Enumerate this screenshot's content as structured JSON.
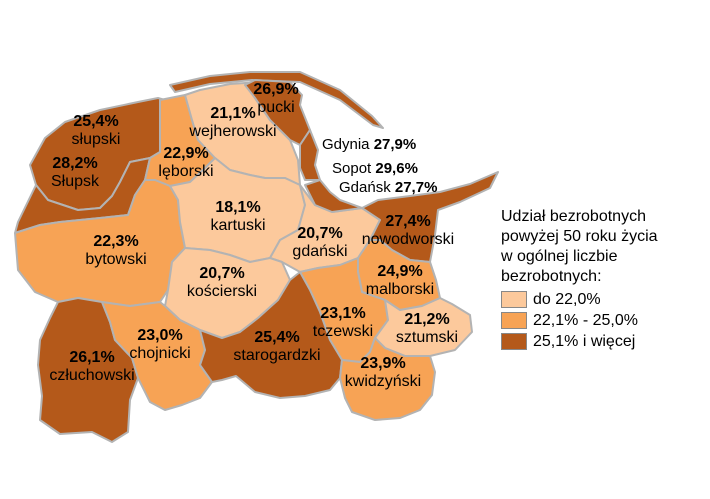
{
  "colors": {
    "light": "#fcc99c",
    "medium": "#f7a355",
    "dark": "#b4591a",
    "border": "#b3b3b3"
  },
  "legend": {
    "title_lines": [
      "Udział bezrobotnych",
      "powyżej 50 roku życia",
      "w ogólnej liczbie",
      "bezrobotnych:"
    ],
    "items": [
      {
        "label": "do 22,0%",
        "color": "#fcc99c"
      },
      {
        "label": "22,1% - 25,0%",
        "color": "#f7a355"
      },
      {
        "label": "25,1% i więcej",
        "color": "#b4591a"
      }
    ]
  },
  "regions": [
    {
      "id": "pucki",
      "name": "pucki",
      "value": "26,9%",
      "class": "dark"
    },
    {
      "id": "slupski",
      "name": "słupski",
      "value": "25,4%",
      "class": "dark"
    },
    {
      "id": "slupsk",
      "name": "Słupsk",
      "value": "28,2%",
      "class": "dark"
    },
    {
      "id": "wejherowski",
      "name": "wejherowski",
      "value": "21,1%",
      "class": "light"
    },
    {
      "id": "leborski",
      "name": "lęborski",
      "value": "22,9%",
      "class": "medium"
    },
    {
      "id": "kartuski",
      "name": "kartuski",
      "value": "18,1%",
      "class": "light"
    },
    {
      "id": "bytowski",
      "name": "bytowski",
      "value": "22,3%",
      "class": "medium"
    },
    {
      "id": "gdanski",
      "name": "gdański",
      "value": "20,7%",
      "class": "light"
    },
    {
      "id": "nowodworski",
      "name": "nowodworski",
      "value": "27,4%",
      "class": "dark"
    },
    {
      "id": "koscierski",
      "name": "kościerski",
      "value": "20,7%",
      "class": "light"
    },
    {
      "id": "malborski",
      "name": "malborski",
      "value": "24,9%",
      "class": "medium"
    },
    {
      "id": "tczewski",
      "name": "tczewski",
      "value": "23,1%",
      "class": "medium"
    },
    {
      "id": "sztumski",
      "name": "sztumski",
      "value": "21,2%",
      "class": "light"
    },
    {
      "id": "czluchowski",
      "name": "człuchowski",
      "value": "26,1%",
      "class": "dark"
    },
    {
      "id": "chojnicki",
      "name": "chojnicki",
      "value": "23,0%",
      "class": "medium"
    },
    {
      "id": "starogardzki",
      "name": "starogardzki",
      "value": "25,4%",
      "class": "dark"
    },
    {
      "id": "kwidzynski",
      "name": "kwidzyński",
      "value": "23,9%",
      "class": "medium"
    }
  ],
  "cities": [
    {
      "name": "Gdynia",
      "value": "27,9%"
    },
    {
      "name": "Sopot",
      "value": "29,6%"
    },
    {
      "name": "Gdańsk",
      "value": "27,7%"
    }
  ]
}
